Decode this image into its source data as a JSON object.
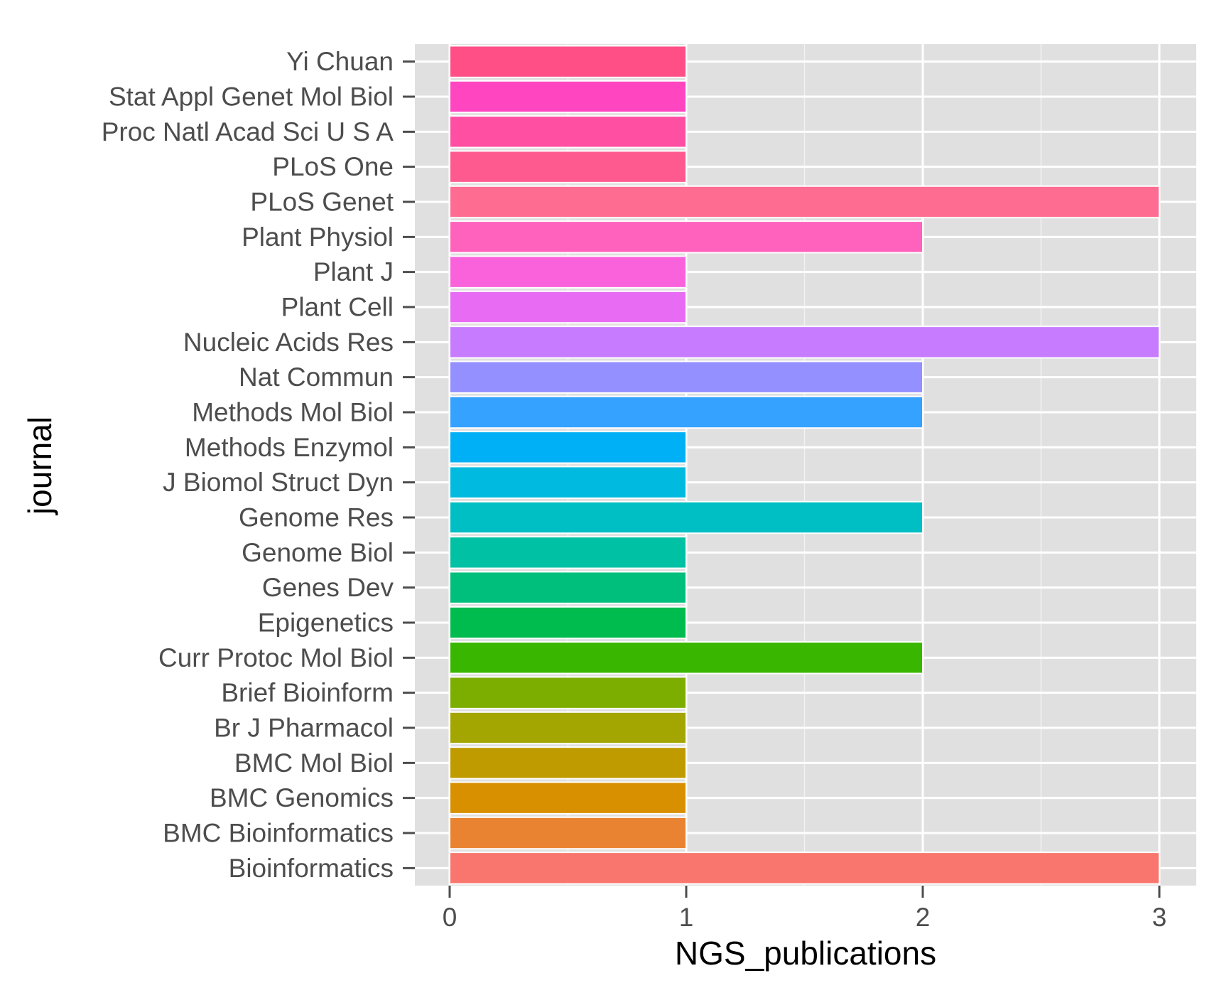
{
  "chart_data": {
    "type": "bar",
    "orientation": "horizontal",
    "xlabel": "NGS_publications",
    "ylabel": "journal",
    "xlim": [
      0,
      3
    ],
    "x_ticks": [
      0,
      1,
      2,
      3
    ],
    "grid": true,
    "legend": "none",
    "background": "#e0e0e0",
    "categories": [
      "Bioinformatics",
      "BMC Bioinformatics",
      "BMC Genomics",
      "BMC Mol Biol",
      "Br J Pharmacol",
      "Brief Bioinform",
      "Curr Protoc Mol Biol",
      "Epigenetics",
      "Genes Dev",
      "Genome Biol",
      "Genome Res",
      "J Biomol Struct Dyn",
      "Methods Enzymol",
      "Methods Mol Biol",
      "Nat Commun",
      "Nucleic Acids Res",
      "Plant Cell",
      "Plant J",
      "Plant Physiol",
      "PLoS Genet",
      "PLoS One",
      "Proc Natl Acad Sci U S A",
      "Stat Appl Genet Mol Biol",
      "Yi Chuan"
    ],
    "values": [
      3,
      1,
      1,
      1,
      1,
      1,
      2,
      1,
      1,
      1,
      2,
      1,
      1,
      2,
      2,
      3,
      1,
      1,
      2,
      3,
      1,
      1,
      1,
      1
    ],
    "colors": [
      "#F8766D",
      "#EA8331",
      "#D89000",
      "#C09B00",
      "#A3A500",
      "#7CAE00",
      "#39B600",
      "#00BB4E",
      "#00BF7D",
      "#00C1A3",
      "#00BFC4",
      "#00BAE0",
      "#00B0F6",
      "#35A2FF",
      "#9590FF",
      "#C77CFF",
      "#E76BF3",
      "#FA62DB",
      "#FF62BC",
      "#FF6C91",
      "#FF5A8F",
      "#FF4FA3",
      "#FF45C0",
      "#FF4F86"
    ]
  }
}
